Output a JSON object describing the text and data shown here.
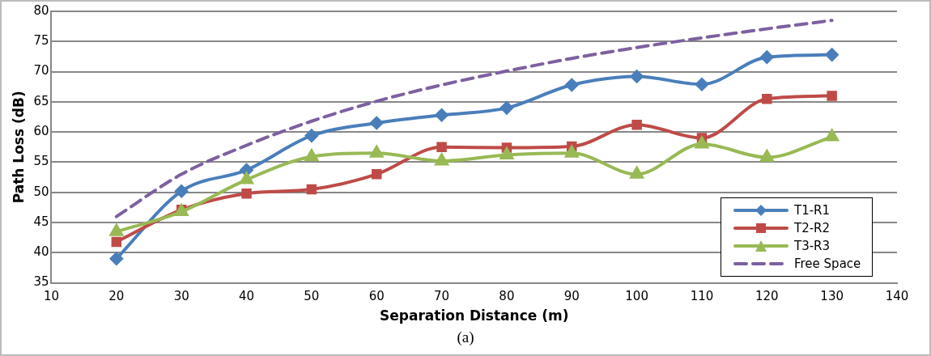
{
  "chart_data": {
    "type": "line",
    "xlabel": "Separation Distance (m)",
    "ylabel": "Path Loss (dB)",
    "x": [
      20,
      30,
      40,
      50,
      60,
      70,
      80,
      90,
      100,
      110,
      120,
      130
    ],
    "xlim": [
      10,
      140
    ],
    "xticks": [
      10,
      20,
      30,
      40,
      50,
      60,
      70,
      80,
      90,
      100,
      110,
      120,
      130,
      140
    ],
    "ylim": [
      35,
      80
    ],
    "yticks": [
      35,
      40,
      45,
      50,
      55,
      60,
      65,
      70,
      75,
      80
    ],
    "grid": "y",
    "legend": "bottom right",
    "annotations": [
      "(a)"
    ],
    "series": [
      {
        "name": "T1-R1",
        "color": "#4a7ebb",
        "marker": "diamond",
        "values": [
          39,
          50.2,
          53.7,
          59.4,
          61.5,
          62.8,
          64,
          67.8,
          69.2,
          67.9,
          72.4,
          72.8
        ]
      },
      {
        "name": "T2-R2",
        "color": "#be4b48",
        "marker": "square",
        "values": [
          41.8,
          47.1,
          49.8,
          50.5,
          53,
          57.5,
          57.4,
          57.6,
          61.2,
          59,
          65.5,
          66
        ]
      },
      {
        "name": "T3-R3",
        "color": "#98b954",
        "marker": "triangle",
        "values": [
          43.5,
          46.8,
          52.1,
          55.9,
          56.5,
          55.2,
          56.2,
          56.5,
          53,
          58,
          55.8,
          59.2
        ]
      },
      {
        "name": "Free Space",
        "color": "#7d60a0",
        "marker": "none",
        "line_style": "dashed",
        "values": [
          46,
          53,
          57.8,
          61.8,
          65.1,
          67.8,
          70.1,
          72.2,
          74,
          75.6,
          77.1,
          78.5
        ]
      }
    ]
  }
}
